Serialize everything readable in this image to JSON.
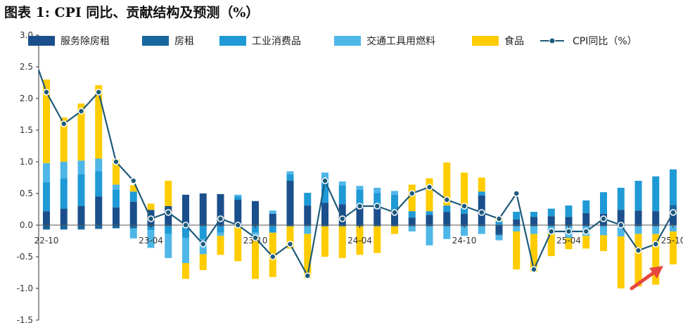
{
  "title": "图表 1:  CPI 同比、贡献结构及预测（%）",
  "chart_data": {
    "type": "bar",
    "title": "图表 1:  CPI 同比、贡献结构及预测（%）",
    "xlabel": "",
    "ylabel": "",
    "ylim": [
      -1.5,
      3.0
    ],
    "yticks": [
      "3.0",
      "2.5",
      "2.0",
      "1.5",
      "1.0",
      "0.5",
      "0.0",
      "-0.5",
      "-1.0",
      "-1.5"
    ],
    "ytick_values": [
      3.0,
      2.5,
      2.0,
      1.5,
      1.0,
      0.5,
      0.0,
      -0.5,
      -1.0,
      -1.5
    ],
    "categories": [
      "22-10",
      "22-11",
      "22-12",
      "23-01",
      "23-02",
      "23-03",
      "23-04",
      "23-05",
      "23-06",
      "23-07",
      "23-08",
      "23-09",
      "23-10",
      "23-11",
      "23-12",
      "24-01",
      "24-02",
      "24-03",
      "24-04",
      "24-05",
      "24-06",
      "24-07",
      "24-08",
      "24-09",
      "24-10",
      "24-11",
      "24-12",
      "25-01",
      "25-02",
      "25-03",
      "25-04",
      "25-05",
      "25-06",
      "25-07",
      "25-08",
      "25-09",
      "25-10"
    ],
    "xtick_labels": [
      {
        "index": 0,
        "label": "22-10"
      },
      {
        "index": 6,
        "label": "23-04"
      },
      {
        "index": 12,
        "label": "23-10"
      },
      {
        "index": 18,
        "label": "24-04"
      },
      {
        "index": 24,
        "label": "24-10"
      },
      {
        "index": 30,
        "label": "25-04"
      },
      {
        "index": 36,
        "label": "25-10"
      }
    ],
    "legend_position": "top",
    "grid": false,
    "series": [
      {
        "name": "服务除房租",
        "kind": "bar",
        "color": "#1b4f8c",
        "values": [
          0.22,
          0.26,
          0.3,
          0.45,
          0.28,
          0.37,
          0.24,
          0.3,
          0.48,
          0.5,
          0.49,
          0.4,
          0.38,
          0.18,
          0.7,
          0.31,
          0.35,
          0.33,
          0.31,
          0.26,
          0.22,
          0.12,
          0.16,
          0.21,
          0.18,
          0.47,
          -0.14,
          0.09,
          0.13,
          0.14,
          0.13,
          0.19,
          0.18,
          0.24,
          0.23,
          0.22,
          0.24
        ]
      },
      {
        "name": "房租",
        "kind": "bar",
        "color": "#17679f",
        "values": [
          -0.07,
          -0.07,
          -0.07,
          -0.06,
          -0.05,
          -0.05,
          -0.03,
          -0.02,
          -0.02,
          -0.02,
          -0.02,
          -0.02,
          -0.02,
          -0.02,
          -0.02,
          -0.02,
          -0.02,
          -0.02,
          -0.02,
          -0.02,
          -0.02,
          -0.02,
          -0.02,
          -0.02,
          -0.02,
          -0.02,
          -0.02,
          -0.02,
          -0.02,
          -0.02,
          -0.02,
          -0.02,
          -0.02,
          -0.02,
          -0.02,
          -0.02,
          0.08
        ]
      },
      {
        "name": "工业消费品",
        "kind": "bar",
        "color": "#1f9ad6",
        "values": [
          0.46,
          0.48,
          0.5,
          0.4,
          0.28,
          0.16,
          -0.05,
          -0.12,
          -0.18,
          -0.2,
          -0.1,
          0.05,
          -0.1,
          -0.1,
          0.1,
          0.2,
          0.4,
          0.3,
          0.25,
          0.25,
          0.26,
          0.1,
          0.06,
          0.1,
          0.1,
          0.06,
          0.06,
          0.12,
          0.08,
          0.12,
          0.18,
          0.2,
          0.34,
          0.35,
          0.47,
          0.55,
          0.56
        ]
      },
      {
        "name": "交通工具用燃料",
        "kind": "bar",
        "color": "#4fb7e8",
        "values": [
          0.3,
          0.26,
          0.22,
          0.2,
          0.08,
          -0.16,
          -0.28,
          -0.38,
          -0.4,
          -0.24,
          -0.05,
          0.03,
          -0.08,
          0.05,
          0.05,
          -0.12,
          0.08,
          0.06,
          0.06,
          0.08,
          0.06,
          -0.08,
          -0.3,
          -0.2,
          -0.15,
          -0.12,
          -0.08,
          -0.08,
          -0.12,
          -0.12,
          -0.18,
          -0.15,
          -0.14,
          -0.16,
          -0.12,
          -0.12,
          -0.1
        ]
      },
      {
        "name": "食品",
        "kind": "bar",
        "color": "#ffcc00",
        "values": [
          1.32,
          0.7,
          0.9,
          1.16,
          0.4,
          0.1,
          0.1,
          0.4,
          -0.25,
          -0.25,
          -0.3,
          -0.55,
          -0.65,
          -0.7,
          -0.35,
          -0.7,
          -0.48,
          -0.5,
          -0.45,
          -0.42,
          -0.12,
          0.42,
          0.52,
          0.68,
          0.55,
          0.22,
          0.05,
          -0.6,
          -0.6,
          -0.35,
          -0.18,
          -0.2,
          -0.25,
          -0.82,
          -0.83,
          -0.8,
          -0.52
        ]
      },
      {
        "name": "CPI同比（%）",
        "kind": "line",
        "color": "#1e5a7a",
        "values": [
          2.1,
          1.6,
          1.8,
          2.1,
          1.0,
          0.7,
          0.1,
          0.2,
          0.0,
          -0.3,
          0.1,
          0.0,
          -0.2,
          -0.5,
          -0.3,
          -0.8,
          0.7,
          0.1,
          0.3,
          0.3,
          0.2,
          0.5,
          0.6,
          0.4,
          0.3,
          0.2,
          0.1,
          0.5,
          -0.7,
          -0.1,
          -0.1,
          -0.1,
          0.1,
          0.0,
          -0.4,
          -0.3,
          0.2
        ],
        "lead_in_value": 2.45
      }
    ],
    "annotations": [
      {
        "type": "arrow",
        "direction": "up-right",
        "color": "#e8473d",
        "near": "25-10"
      }
    ]
  }
}
